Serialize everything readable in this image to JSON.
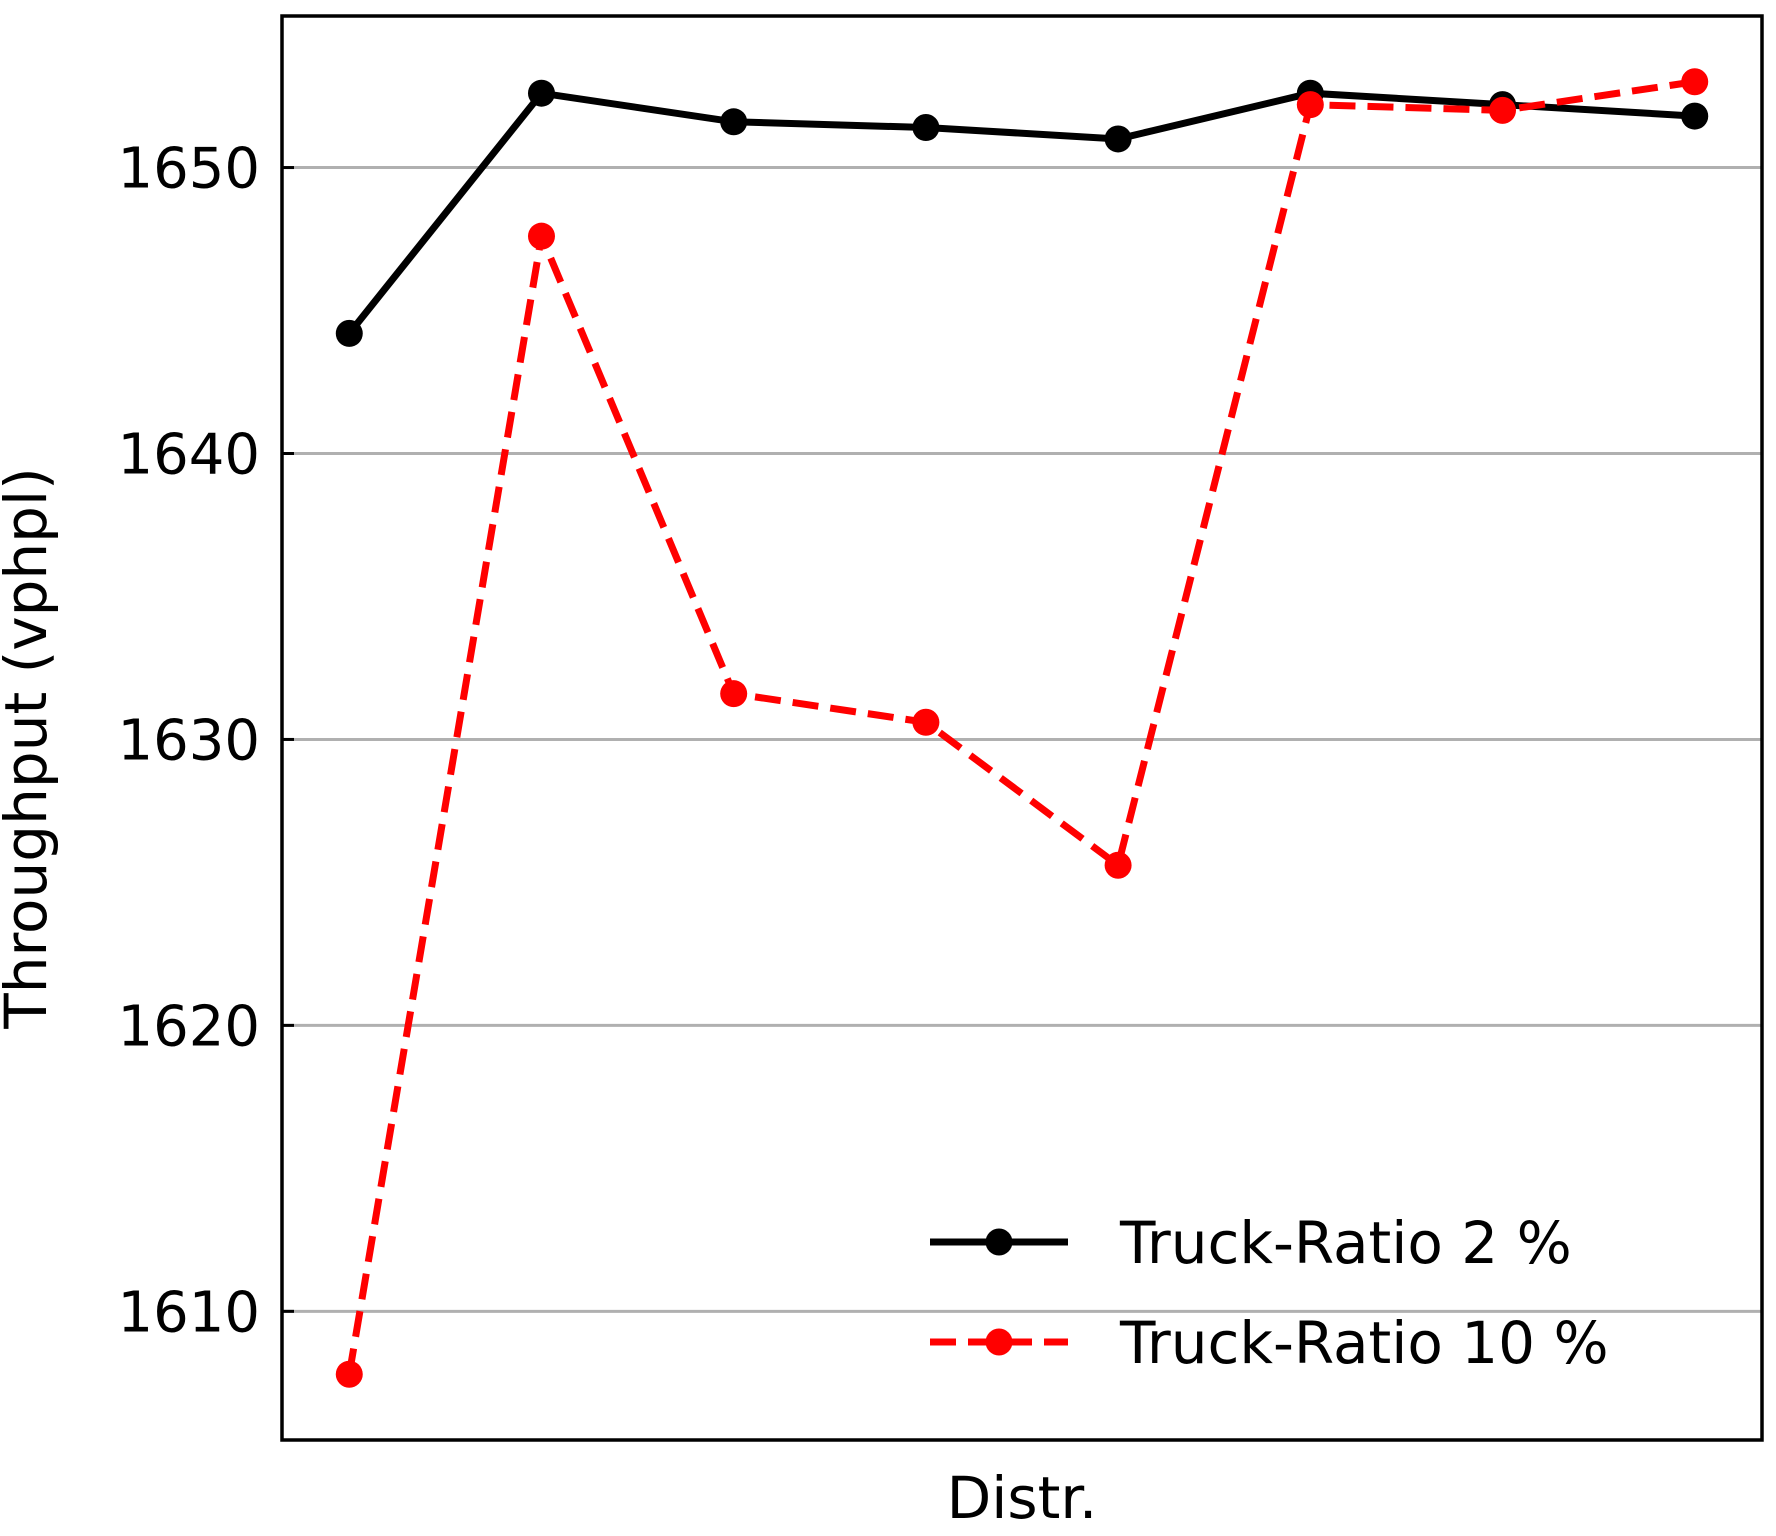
{
  "chart_data": {
    "type": "line",
    "title": "",
    "xlabel": "Distr.",
    "ylabel": "Throughput (vphpl)",
    "x": [
      1,
      2,
      3,
      4,
      5,
      6,
      7,
      8
    ],
    "xlim": [
      0.65,
      8.35
    ],
    "ylim": [
      1605.5,
      1655.3
    ],
    "yticks": [
      1610,
      1620,
      1630,
      1640,
      1650
    ],
    "grid": "horizontal",
    "legend_position": "lower-right",
    "series": [
      {
        "name": "Truck-Ratio 2 %",
        "color": "#000000",
        "line_style": "solid",
        "marker": "circle",
        "values": [
          1644.2,
          1652.6,
          1651.6,
          1651.4,
          1651.0,
          1652.6,
          1652.2,
          1651.8
        ]
      },
      {
        "name": "Truck-Ratio 10 %",
        "color": "#ff0000",
        "line_style": "dashed",
        "marker": "circle",
        "values": [
          1607.8,
          1647.6,
          1631.6,
          1630.6,
          1625.6,
          1652.2,
          1652.0,
          1653.0
        ]
      }
    ]
  }
}
